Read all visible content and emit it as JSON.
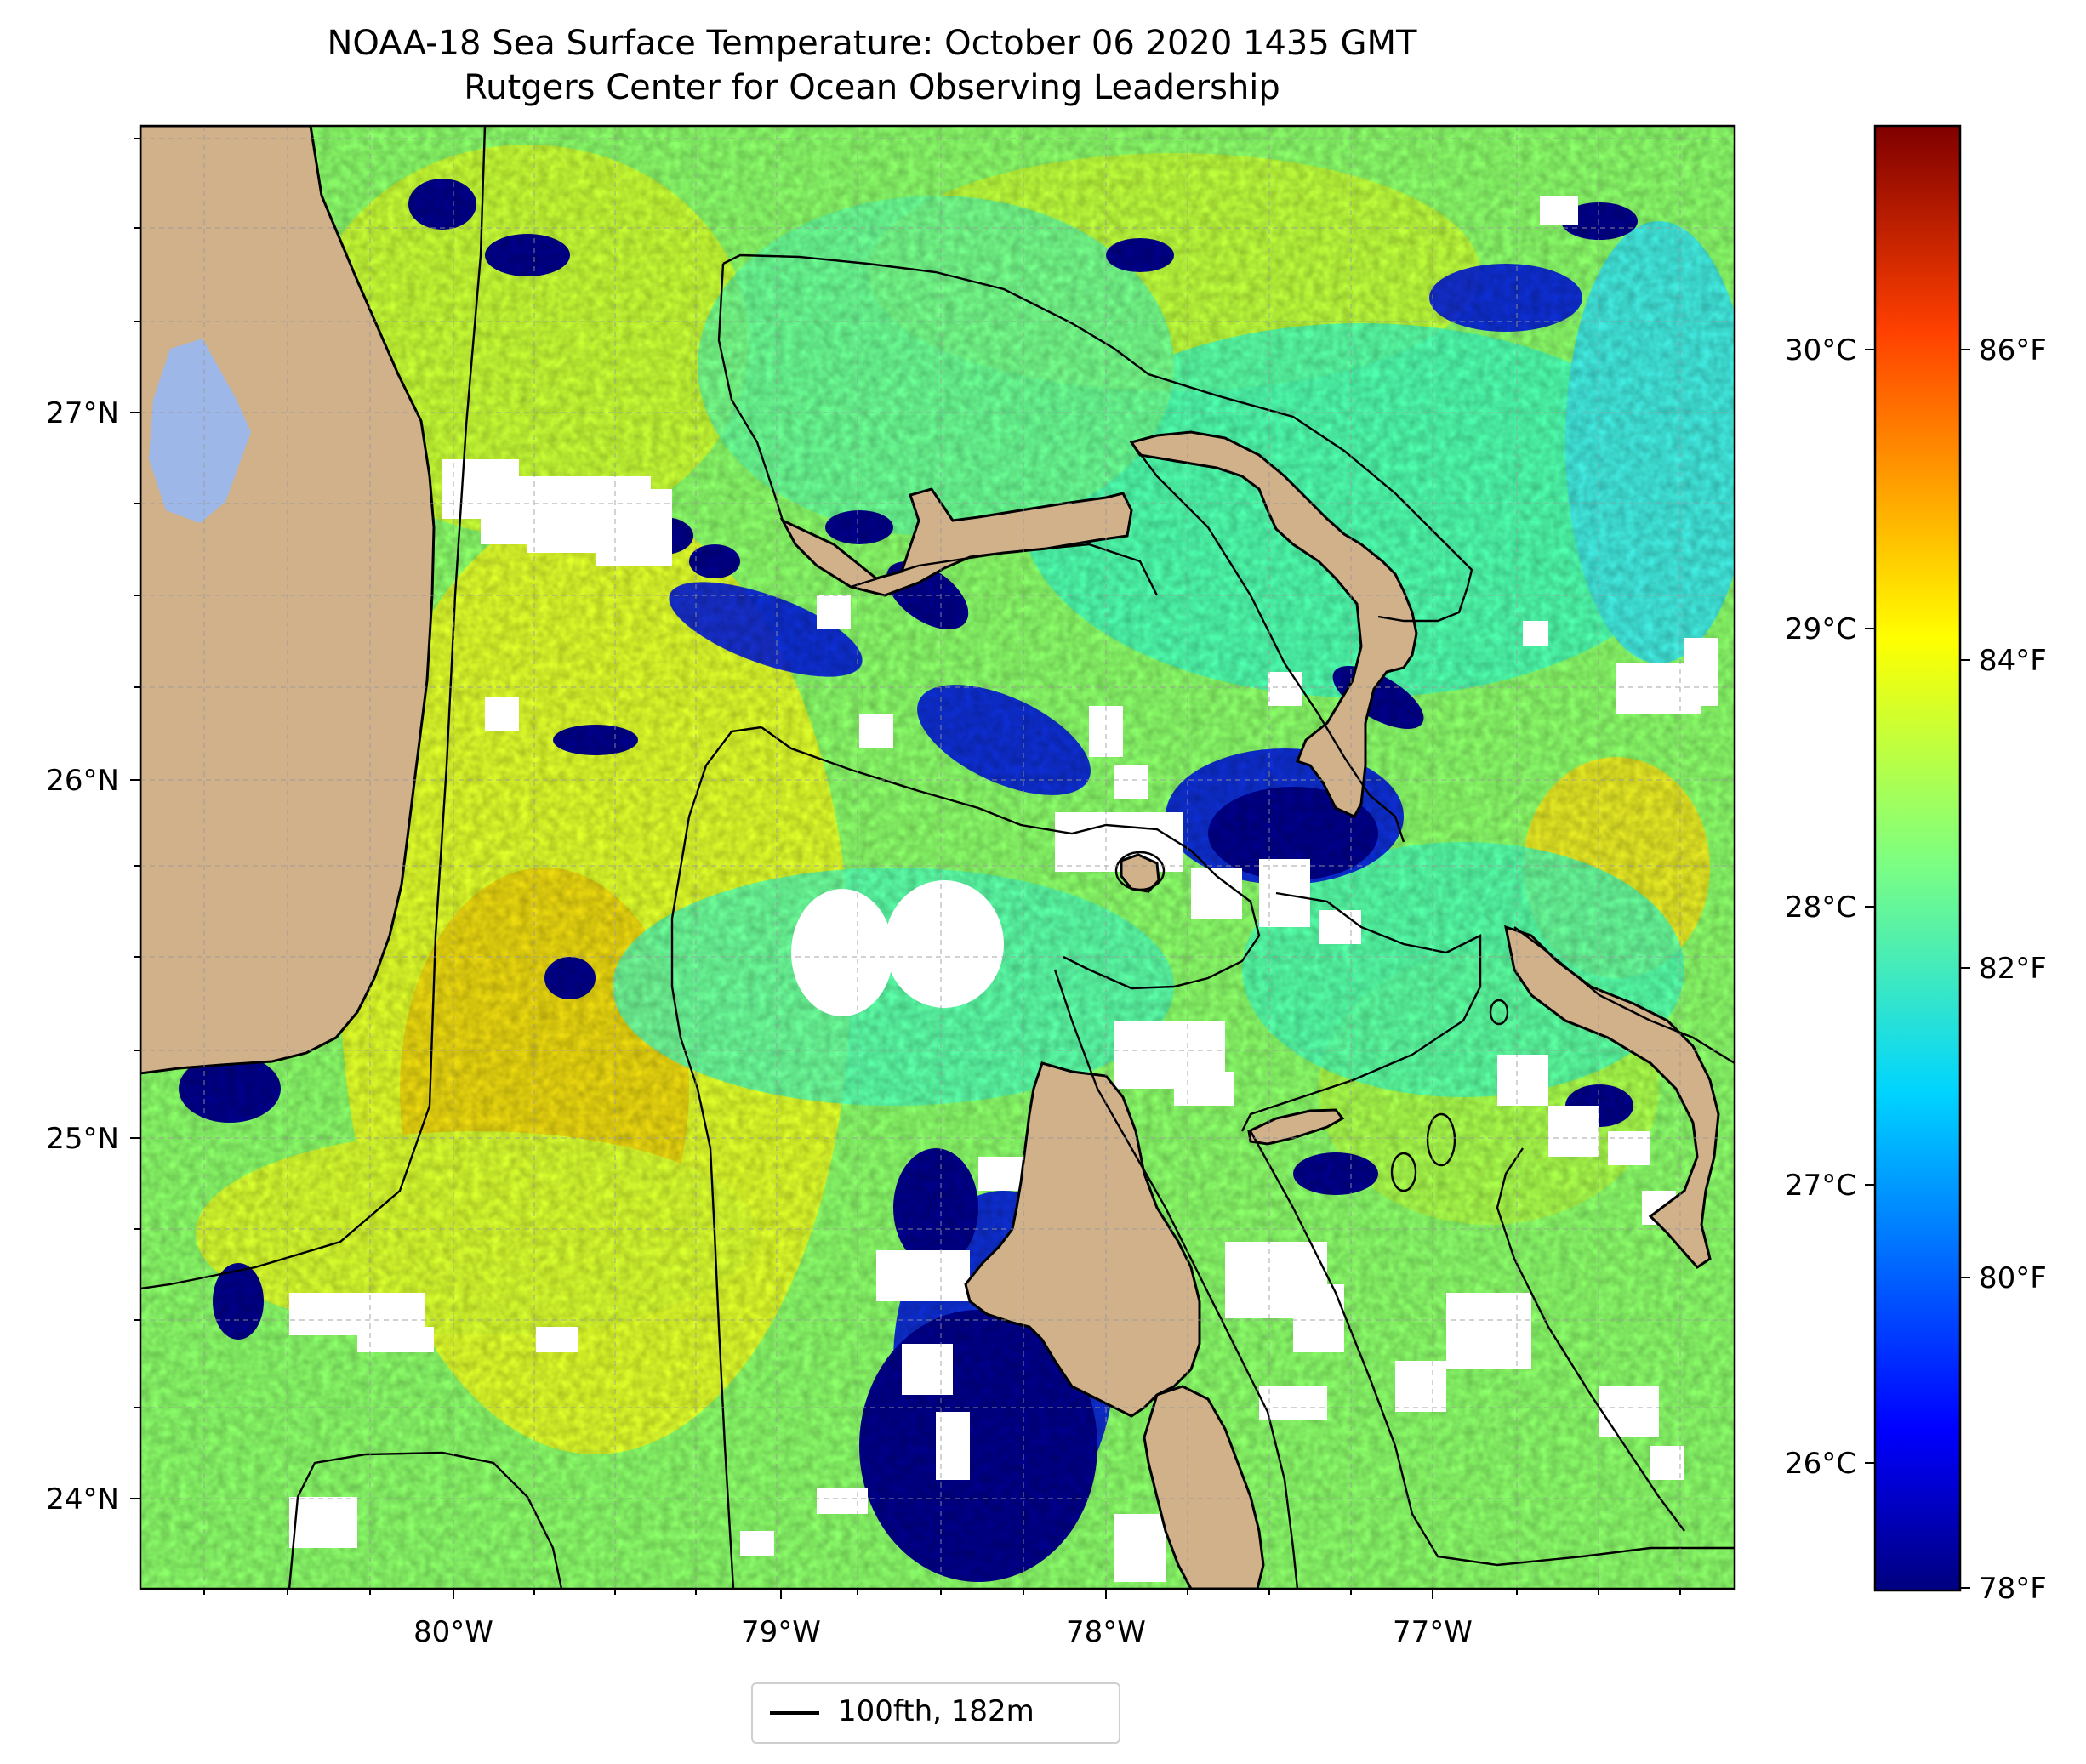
{
  "title": "NOAA-18 Sea Surface Temperature: October 06 2020 1435 GMT",
  "subtitle": "Rutgers Center for Ocean Observing Leadership",
  "map": {
    "lon_range": [
      -80.96,
      -76.08
    ],
    "lat_range": [
      23.74,
      27.82
    ],
    "lon_ticks": [
      "80°W",
      "79°W",
      "78°W",
      "77°W"
    ],
    "lat_ticks": [
      "27°N",
      "26°N",
      "25°N",
      "24°N"
    ],
    "gridlines": true,
    "land_color": "#d1b18a",
    "missing_data_color": "#ffffff",
    "colormap": "jet"
  },
  "colorbar": {
    "celsius_ticks": [
      "30°C",
      "29°C",
      "28°C",
      "27°C",
      "26°C"
    ],
    "fahrenheit_ticks": [
      "86°F",
      "84°F",
      "82°F",
      "80°F",
      "78°F"
    ],
    "range_f": [
      77.9,
      87.8
    ],
    "colors": [
      "#00007f",
      "#0000ff",
      "#007fff",
      "#00ffff",
      "#7fff7f",
      "#ffff00",
      "#ff7f00",
      "#ff0000",
      "#7f0000"
    ]
  },
  "legend": {
    "label": "100fth, 182m",
    "line_color": "#000000"
  }
}
